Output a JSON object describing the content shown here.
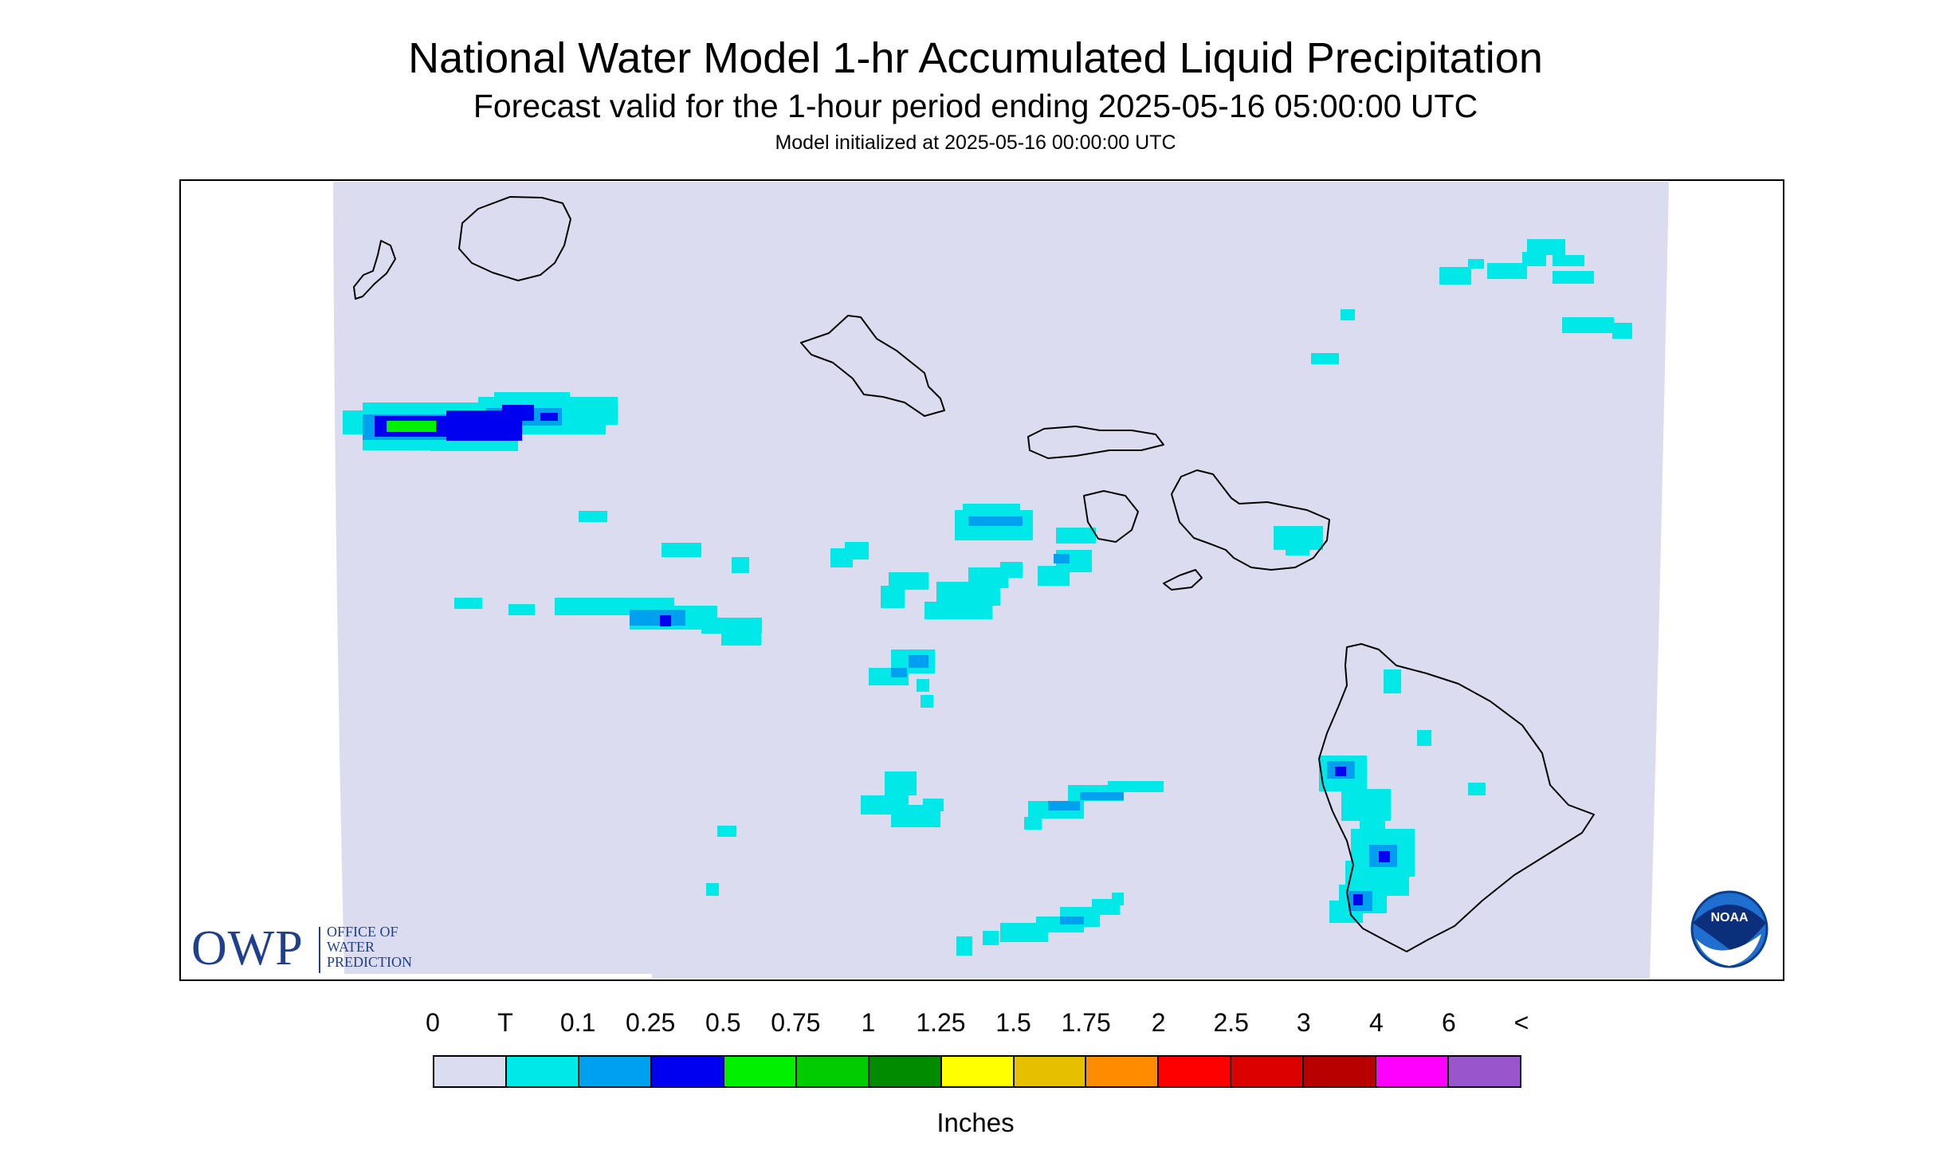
{
  "title": "National Water Model 1-hr Accumulated Liquid Precipitation",
  "subtitle": "Forecast valid for the 1-hour period ending 2025-05-16 05:00:00 UTC",
  "init_text": "Model initialized at 2025-05-16 00:00:00 UTC",
  "legend": {
    "units": "Inches",
    "ticks": [
      "0",
      "T",
      "0.1",
      "0.25",
      "0.5",
      "0.75",
      "1",
      "1.25",
      "1.5",
      "1.75",
      "2",
      "2.5",
      "3",
      "4",
      "6",
      "<"
    ],
    "colors": [
      "#dcdcf0",
      "#00e8e8",
      "#00a0f0",
      "#0000f0",
      "#00f000",
      "#00cc00",
      "#008c00",
      "#ffff00",
      "#e6c000",
      "#ff8c00",
      "#ff0000",
      "#dc0000",
      "#b80000",
      "#ff00ff",
      "#9955cc"
    ]
  },
  "colors": {
    "background_field": "#dcdcf0",
    "trace": "#00e8e8",
    "light": "#00a0f0",
    "medium": "#0000f0",
    "heavy": "#00f000",
    "coastline": "#000000"
  },
  "logos": {
    "owp_big": "OWP",
    "owp_line1": "OFFICE OF",
    "owp_line2": "WATER",
    "owp_line3": "PREDICTION",
    "noaa_text": "NOAA"
  }
}
